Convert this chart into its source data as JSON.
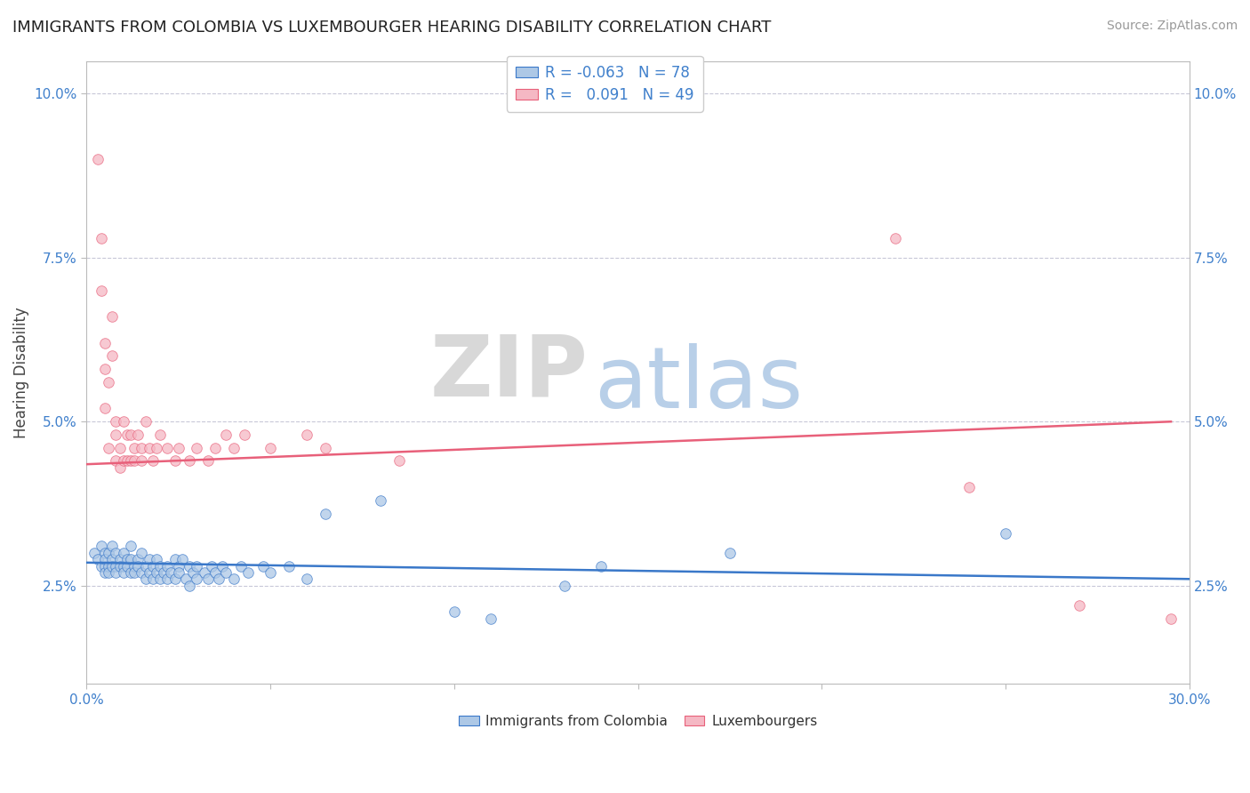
{
  "title": "IMMIGRANTS FROM COLOMBIA VS LUXEMBOURGER HEARING DISABILITY CORRELATION CHART",
  "source": "Source: ZipAtlas.com",
  "ylabel": "Hearing Disability",
  "xlim": [
    0.0,
    0.3
  ],
  "ylim": [
    0.01,
    0.105
  ],
  "xticks": [
    0.0,
    0.05,
    0.1,
    0.15,
    0.2,
    0.25,
    0.3
  ],
  "xticklabels": [
    "0.0%",
    "",
    "",
    "",
    "",
    "",
    "30.0%"
  ],
  "yticks": [
    0.025,
    0.05,
    0.075,
    0.1
  ],
  "yticklabels": [
    "2.5%",
    "5.0%",
    "7.5%",
    "10.0%"
  ],
  "legend_r_blue": "-0.063",
  "legend_n_blue": "78",
  "legend_r_pink": "0.091",
  "legend_n_pink": "49",
  "blue_color": "#adc8e6",
  "pink_color": "#f5b8c4",
  "line_blue": "#3a78c9",
  "line_pink": "#e8607a",
  "watermark_zip": "ZIP",
  "watermark_atlas": "atlas",
  "watermark_zip_color": "#d8d8d8",
  "watermark_atlas_color": "#b8cfe8",
  "blue_scatter": [
    [
      0.002,
      0.03
    ],
    [
      0.003,
      0.029
    ],
    [
      0.004,
      0.028
    ],
    [
      0.004,
      0.031
    ],
    [
      0.005,
      0.03
    ],
    [
      0.005,
      0.028
    ],
    [
      0.005,
      0.027
    ],
    [
      0.005,
      0.029
    ],
    [
      0.006,
      0.028
    ],
    [
      0.006,
      0.03
    ],
    [
      0.006,
      0.027
    ],
    [
      0.007,
      0.029
    ],
    [
      0.007,
      0.028
    ],
    [
      0.007,
      0.031
    ],
    [
      0.008,
      0.028
    ],
    [
      0.008,
      0.027
    ],
    [
      0.008,
      0.03
    ],
    [
      0.009,
      0.029
    ],
    [
      0.009,
      0.028
    ],
    [
      0.01,
      0.03
    ],
    [
      0.01,
      0.028
    ],
    [
      0.01,
      0.027
    ],
    [
      0.011,
      0.029
    ],
    [
      0.011,
      0.028
    ],
    [
      0.012,
      0.027
    ],
    [
      0.012,
      0.029
    ],
    [
      0.012,
      0.031
    ],
    [
      0.013,
      0.028
    ],
    [
      0.013,
      0.027
    ],
    [
      0.014,
      0.029
    ],
    [
      0.014,
      0.028
    ],
    [
      0.015,
      0.027
    ],
    [
      0.015,
      0.03
    ],
    [
      0.016,
      0.028
    ],
    [
      0.016,
      0.026
    ],
    [
      0.017,
      0.027
    ],
    [
      0.017,
      0.029
    ],
    [
      0.018,
      0.028
    ],
    [
      0.018,
      0.026
    ],
    [
      0.019,
      0.027
    ],
    [
      0.019,
      0.029
    ],
    [
      0.02,
      0.028
    ],
    [
      0.02,
      0.026
    ],
    [
      0.021,
      0.027
    ],
    [
      0.022,
      0.028
    ],
    [
      0.022,
      0.026
    ],
    [
      0.023,
      0.027
    ],
    [
      0.024,
      0.029
    ],
    [
      0.024,
      0.026
    ],
    [
      0.025,
      0.028
    ],
    [
      0.025,
      0.027
    ],
    [
      0.026,
      0.029
    ],
    [
      0.027,
      0.026
    ],
    [
      0.028,
      0.028
    ],
    [
      0.028,
      0.025
    ],
    [
      0.029,
      0.027
    ],
    [
      0.03,
      0.026
    ],
    [
      0.03,
      0.028
    ],
    [
      0.032,
      0.027
    ],
    [
      0.033,
      0.026
    ],
    [
      0.034,
      0.028
    ],
    [
      0.035,
      0.027
    ],
    [
      0.036,
      0.026
    ],
    [
      0.037,
      0.028
    ],
    [
      0.038,
      0.027
    ],
    [
      0.04,
      0.026
    ],
    [
      0.042,
      0.028
    ],
    [
      0.044,
      0.027
    ],
    [
      0.048,
      0.028
    ],
    [
      0.05,
      0.027
    ],
    [
      0.055,
      0.028
    ],
    [
      0.06,
      0.026
    ],
    [
      0.065,
      0.036
    ],
    [
      0.08,
      0.038
    ],
    [
      0.1,
      0.021
    ],
    [
      0.11,
      0.02
    ],
    [
      0.13,
      0.025
    ],
    [
      0.14,
      0.028
    ],
    [
      0.175,
      0.03
    ],
    [
      0.25,
      0.033
    ]
  ],
  "pink_scatter": [
    [
      0.003,
      0.09
    ],
    [
      0.004,
      0.078
    ],
    [
      0.004,
      0.07
    ],
    [
      0.005,
      0.062
    ],
    [
      0.005,
      0.058
    ],
    [
      0.005,
      0.052
    ],
    [
      0.006,
      0.056
    ],
    [
      0.006,
      0.046
    ],
    [
      0.007,
      0.066
    ],
    [
      0.007,
      0.06
    ],
    [
      0.008,
      0.05
    ],
    [
      0.008,
      0.048
    ],
    [
      0.008,
      0.044
    ],
    [
      0.009,
      0.046
    ],
    [
      0.009,
      0.043
    ],
    [
      0.01,
      0.05
    ],
    [
      0.01,
      0.044
    ],
    [
      0.011,
      0.048
    ],
    [
      0.011,
      0.044
    ],
    [
      0.012,
      0.048
    ],
    [
      0.012,
      0.044
    ],
    [
      0.013,
      0.046
    ],
    [
      0.013,
      0.044
    ],
    [
      0.014,
      0.048
    ],
    [
      0.015,
      0.046
    ],
    [
      0.015,
      0.044
    ],
    [
      0.016,
      0.05
    ],
    [
      0.017,
      0.046
    ],
    [
      0.018,
      0.044
    ],
    [
      0.019,
      0.046
    ],
    [
      0.02,
      0.048
    ],
    [
      0.022,
      0.046
    ],
    [
      0.024,
      0.044
    ],
    [
      0.025,
      0.046
    ],
    [
      0.028,
      0.044
    ],
    [
      0.03,
      0.046
    ],
    [
      0.033,
      0.044
    ],
    [
      0.035,
      0.046
    ],
    [
      0.038,
      0.048
    ],
    [
      0.04,
      0.046
    ],
    [
      0.043,
      0.048
    ],
    [
      0.05,
      0.046
    ],
    [
      0.06,
      0.048
    ],
    [
      0.065,
      0.046
    ],
    [
      0.085,
      0.044
    ],
    [
      0.22,
      0.078
    ],
    [
      0.24,
      0.04
    ],
    [
      0.27,
      0.022
    ],
    [
      0.295,
      0.02
    ]
  ],
  "blue_line_x": [
    0.0,
    0.3
  ],
  "blue_line_y": [
    0.0285,
    0.026
  ],
  "pink_line_x": [
    0.0,
    0.295
  ],
  "pink_line_y": [
    0.0435,
    0.05
  ],
  "grid_color": "#c8c8d8",
  "title_fontsize": 13,
  "tick_color": "#4080cc",
  "background_color": "#ffffff"
}
